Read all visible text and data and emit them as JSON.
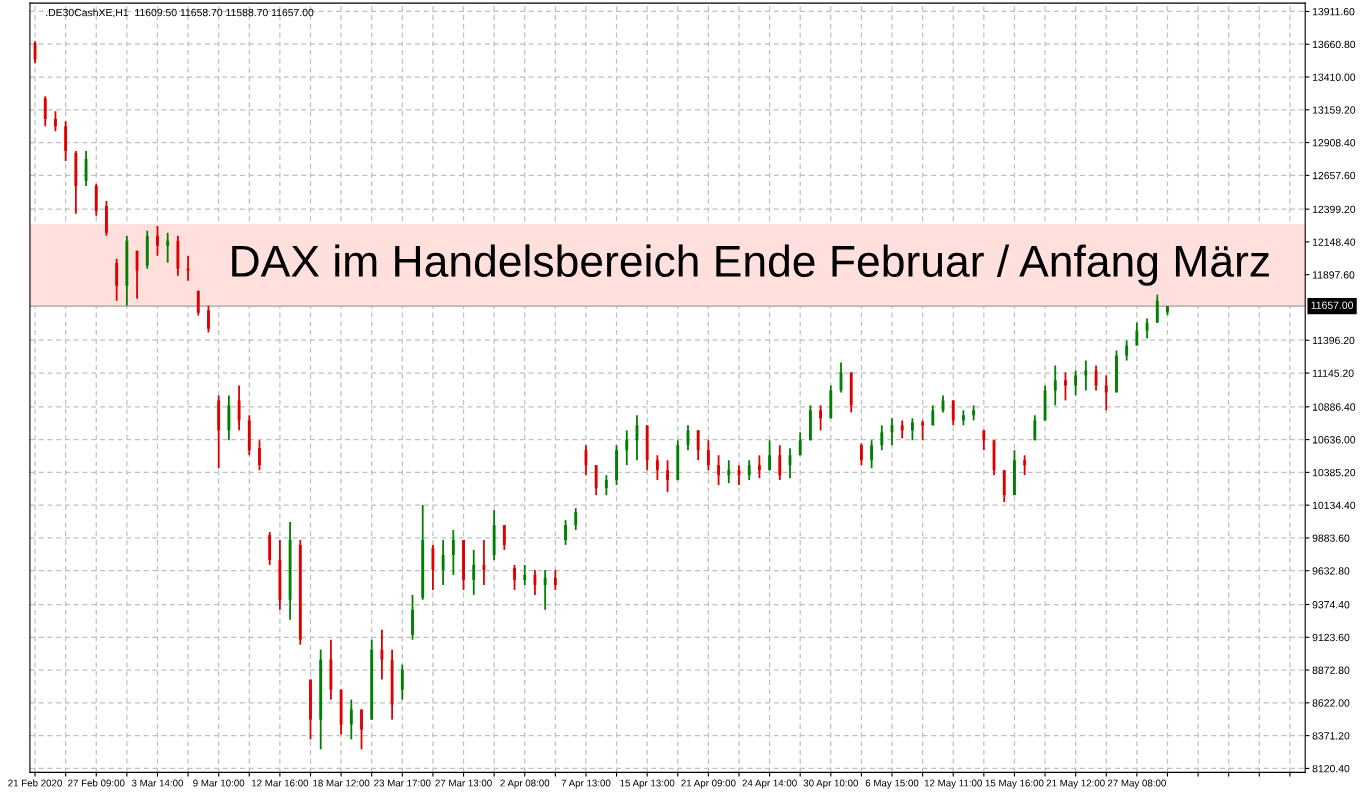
{
  "chart_data": {
    "type": "candlestick",
    "annotations": [
      ".DE30CashXE,H1  11609.50 11658.70 11588.70 11657.00"
    ],
    "categories": [
      "21 Feb 2020",
      null,
      null,
      null,
      null,
      null,
      "27 Feb 09:00",
      null,
      null,
      null,
      null,
      null,
      "3 Mar 14:00",
      null,
      null,
      null,
      null,
      null,
      "9 Mar 10:00",
      null,
      null,
      null,
      null,
      null,
      "12 Mar 16:00",
      null,
      null,
      null,
      null,
      null,
      "18 Mar 12:00",
      null,
      null,
      null,
      null,
      null,
      "23 Mar 17:00",
      null,
      null,
      null,
      null,
      null,
      "27 Mar 13:00",
      null,
      null,
      null,
      null,
      null,
      "2 Apr 08:00",
      null,
      null,
      null,
      null,
      null,
      "7 Apr 13:00",
      null,
      null,
      null,
      null,
      null,
      "15 Apr 13:00",
      null,
      null,
      null,
      null,
      null,
      "21 Apr 09:00",
      null,
      null,
      null,
      null,
      null,
      "24 Apr 14:00",
      null,
      null,
      null,
      null,
      null,
      "30 Apr 10:00",
      null,
      null,
      null,
      null,
      null,
      "6 May 15:00",
      null,
      null,
      null,
      null,
      null,
      "12 May 11:00",
      null,
      null,
      null,
      null,
      null,
      "15 May 16:00",
      null,
      null,
      null,
      null,
      null,
      "21 May 12:00",
      null,
      null,
      null,
      null,
      null,
      "27 May 08:00",
      null,
      null,
      null,
      null,
      null,
      null,
      null,
      null,
      null,
      null,
      null,
      null,
      null,
      null,
      null,
      null
    ],
    "ohlc": [
      [
        13668,
        13683,
        13515,
        13545
      ],
      [
        13248,
        13263,
        13034,
        13088
      ],
      [
        13088,
        13149,
        12996,
        13034
      ],
      [
        13034,
        13072,
        12767,
        12844
      ],
      [
        12828,
        12844,
        12363,
        12576
      ],
      [
        12615,
        12844,
        12576,
        12782
      ],
      [
        12576,
        12592,
        12348,
        12386
      ],
      [
        12424,
        12462,
        12195,
        12218
      ],
      [
        11989,
        12020,
        11699,
        11813
      ],
      [
        11813,
        12195,
        11661,
        12157
      ],
      [
        12081,
        12081,
        11714,
        11928
      ],
      [
        11966,
        12233,
        11943,
        12195
      ],
      [
        12195,
        12271,
        12042,
        12119
      ],
      [
        12119,
        12218,
        11989,
        12157
      ],
      [
        12157,
        12195,
        11890,
        11943
      ],
      [
        11943,
        12042,
        11852,
        11928
      ],
      [
        11775,
        11775,
        11585,
        11607
      ],
      [
        11623,
        11661,
        11455,
        11485
      ],
      [
        10936,
        10974,
        10417,
        10707
      ],
      [
        10707,
        10974,
        10631,
        10898
      ],
      [
        10936,
        11050,
        10707,
        10783
      ],
      [
        10783,
        10822,
        10516,
        10555
      ],
      [
        10570,
        10631,
        10402,
        10440
      ],
      [
        9906,
        9929,
        9677,
        9715
      ],
      [
        9715,
        9868,
        9334,
        9410
      ],
      [
        9410,
        10005,
        9257,
        9868
      ],
      [
        9830,
        9868,
        9067,
        9105
      ],
      [
        8800,
        8800,
        8342,
        8494
      ],
      [
        8494,
        9029,
        8266,
        8952
      ],
      [
        8952,
        9105,
        8647,
        8723
      ],
      [
        8723,
        8723,
        8380,
        8456
      ],
      [
        8456,
        8647,
        8342,
        8571
      ],
      [
        8571,
        8571,
        8266,
        8418
      ],
      [
        8494,
        9105,
        8494,
        9029
      ],
      [
        9029,
        9181,
        8800,
        8952
      ],
      [
        8952,
        9029,
        8494,
        8609
      ],
      [
        8723,
        8914,
        8647,
        8876
      ],
      [
        9143,
        9448,
        9105,
        9334
      ],
      [
        9425,
        10135,
        9410,
        9868
      ],
      [
        9807,
        9830,
        9486,
        9639
      ],
      [
        9639,
        9868,
        9524,
        9753
      ],
      [
        9753,
        9944,
        9601,
        9868
      ],
      [
        9868,
        9868,
        9486,
        9563
      ],
      [
        9563,
        9792,
        9448,
        9677
      ],
      [
        9677,
        9868,
        9524,
        9639
      ],
      [
        9753,
        10097,
        9715,
        9982
      ],
      [
        9982,
        9982,
        9792,
        9830
      ],
      [
        9654,
        9677,
        9486,
        9563
      ],
      [
        9563,
        9677,
        9524,
        9601
      ],
      [
        9601,
        9639,
        9448,
        9524
      ],
      [
        9524,
        9639,
        9334,
        9578
      ],
      [
        9578,
        9639,
        9486,
        9524
      ],
      [
        9868,
        10020,
        9830,
        9982
      ],
      [
        9982,
        10112,
        9944,
        10081
      ],
      [
        10555,
        10593,
        10364,
        10440
      ],
      [
        10440,
        10440,
        10211,
        10265
      ],
      [
        10265,
        10364,
        10211,
        10326
      ],
      [
        10326,
        10593,
        10288,
        10555
      ],
      [
        10555,
        10707,
        10440,
        10631
      ],
      [
        10631,
        10822,
        10478,
        10745
      ],
      [
        10745,
        10745,
        10402,
        10478
      ],
      [
        10478,
        10516,
        10326,
        10402
      ],
      [
        10402,
        10478,
        10234,
        10326
      ],
      [
        10326,
        10631,
        10326,
        10593
      ],
      [
        10593,
        10745,
        10555,
        10707
      ],
      [
        10707,
        10707,
        10478,
        10555
      ],
      [
        10555,
        10631,
        10402,
        10440
      ],
      [
        10440,
        10516,
        10288,
        10364
      ],
      [
        10364,
        10478,
        10303,
        10402
      ],
      [
        10402,
        10440,
        10288,
        10364
      ],
      [
        10364,
        10478,
        10326,
        10440
      ],
      [
        10440,
        10516,
        10341,
        10402
      ],
      [
        10402,
        10631,
        10402,
        10516
      ],
      [
        10516,
        10593,
        10326,
        10364
      ],
      [
        10440,
        10570,
        10341,
        10516
      ],
      [
        10516,
        10692,
        10516,
        10631
      ],
      [
        10631,
        10898,
        10631,
        10860
      ],
      [
        10860,
        10898,
        10707,
        10799
      ],
      [
        10799,
        11050,
        10799,
        11012
      ],
      [
        11012,
        11226,
        10997,
        11150
      ],
      [
        11150,
        11150,
        10844,
        10898
      ],
      [
        10593,
        10608,
        10440,
        10478
      ],
      [
        10478,
        10631,
        10417,
        10593
      ],
      [
        10593,
        10745,
        10555,
        10692
      ],
      [
        10692,
        10799,
        10593,
        10745
      ],
      [
        10745,
        10783,
        10646,
        10707
      ],
      [
        10707,
        10799,
        10631,
        10768
      ],
      [
        10768,
        10783,
        10631,
        10745
      ],
      [
        10745,
        10898,
        10745,
        10860
      ],
      [
        10860,
        10974,
        10844,
        10936
      ],
      [
        10936,
        10936,
        10745,
        10783
      ],
      [
        10783,
        10860,
        10745,
        10822
      ],
      [
        10822,
        10898,
        10783,
        10860
      ],
      [
        10707,
        10707,
        10555,
        10631
      ],
      [
        10631,
        10631,
        10364,
        10402
      ],
      [
        10402,
        10402,
        10158,
        10211
      ],
      [
        10211,
        10555,
        10211,
        10478
      ],
      [
        10478,
        10516,
        10364,
        10440
      ],
      [
        10631,
        10822,
        10631,
        10783
      ],
      [
        10783,
        11050,
        10783,
        11012
      ],
      [
        11012,
        11203,
        10898,
        11089
      ],
      [
        11089,
        11150,
        10936,
        11050
      ],
      [
        11050,
        11165,
        10974,
        11127
      ],
      [
        11127,
        11241,
        11012,
        11165
      ],
      [
        11165,
        11203,
        11012,
        11050
      ],
      [
        11050,
        11127,
        10860,
        10997
      ],
      [
        10997,
        11318,
        10997,
        11279
      ],
      [
        11279,
        11394,
        11241,
        11356
      ],
      [
        11356,
        11531,
        11356,
        11470
      ],
      [
        11470,
        11562,
        11409,
        11531
      ],
      [
        11531,
        11745,
        11531,
        11699
      ],
      [
        11609.5,
        11658.7,
        11588.7,
        11657.0
      ],
      null,
      null,
      null,
      null,
      null,
      null,
      null,
      null,
      null,
      null,
      null,
      null,
      null
    ],
    "colors": [
      "#e00000",
      "#e00000",
      "#e00000",
      "#e00000",
      "#e00000",
      "#008000",
      "#e00000",
      "#e00000",
      "#e00000",
      "#008000",
      "#e00000",
      "#008000",
      "#e00000",
      "#008000",
      "#e00000",
      "#e00000",
      "#e00000",
      "#e00000",
      "#e00000",
      "#008000",
      "#e00000",
      "#e00000",
      "#e00000",
      "#e00000",
      "#e00000",
      "#008000",
      "#e00000",
      "#e00000",
      "#008000",
      "#e00000",
      "#e00000",
      "#008000",
      "#e00000",
      "#008000",
      "#e00000",
      "#e00000",
      "#008000",
      "#008000",
      "#008000",
      "#e00000",
      "#008000",
      "#008000",
      "#e00000",
      "#008000",
      "#e00000",
      "#008000",
      "#e00000",
      "#e00000",
      "#008000",
      "#e00000",
      "#008000",
      "#e00000",
      "#008000",
      "#008000",
      "#e00000",
      "#e00000",
      "#008000",
      "#008000",
      "#008000",
      "#008000",
      "#e00000",
      "#e00000",
      "#e00000",
      "#008000",
      "#008000",
      "#e00000",
      "#e00000",
      "#e00000",
      "#008000",
      "#e00000",
      "#008000",
      "#e00000",
      "#008000",
      "#e00000",
      "#008000",
      "#008000",
      "#008000",
      "#e00000",
      "#008000",
      "#008000",
      "#e00000",
      "#e00000",
      "#008000",
      "#008000",
      "#008000",
      "#e00000",
      "#008000",
      "#e00000",
      "#008000",
      "#008000",
      "#e00000",
      "#008000",
      "#008000",
      "#e00000",
      "#e00000",
      "#e00000",
      "#008000",
      "#e00000",
      "#008000",
      "#008000",
      "#008000",
      "#e00000",
      "#008000",
      "#008000",
      "#e00000",
      "#e00000",
      "#008000",
      "#008000",
      "#008000",
      "#008000",
      "#008000",
      "#008000",
      null,
      null,
      null,
      null,
      null,
      null,
      null,
      null,
      null,
      null,
      null,
      null,
      null
    ],
    "ylim": [
      8090,
      13975
    ],
    "yticks": [
      {
        "value": 13911.6,
        "label": "13911.60"
      },
      {
        "value": 13660.8,
        "label": "13660.80"
      },
      {
        "value": 13410.0,
        "label": "13410.00"
      },
      {
        "value": 13159.2,
        "label": "13159.20"
      },
      {
        "value": 12908.4,
        "label": "12908.40"
      },
      {
        "value": 12657.6,
        "label": "12657.60"
      },
      {
        "value": 12399.2,
        "label": "12399.20"
      },
      {
        "value": 12148.4,
        "label": "12148.40"
      },
      {
        "value": 11897.6,
        "label": "11897.60"
      },
      {
        "value": 11396.2,
        "label": "11396.20"
      },
      {
        "value": 11145.2,
        "label": "11145.20"
      },
      {
        "value": 10886.4,
        "label": "10886.40"
      },
      {
        "value": 10636.0,
        "label": "10636.00"
      },
      {
        "value": 10385.2,
        "label": "10385.20"
      },
      {
        "value": 10134.4,
        "label": "10134.40"
      },
      {
        "value": 9883.6,
        "label": "9883.60"
      },
      {
        "value": 9632.8,
        "label": "9632.80"
      },
      {
        "value": 9374.4,
        "label": "9374.40"
      },
      {
        "value": 9123.6,
        "label": "9123.60"
      },
      {
        "value": 8872.8,
        "label": "8872.80"
      },
      {
        "value": 8622.0,
        "label": "8622.00"
      },
      {
        "value": 8371.2,
        "label": "8371.20"
      },
      {
        "value": 8120.4,
        "label": "8120.40"
      }
    ],
    "ref_lines": [
      {
        "axis": "y",
        "value": 11657.0,
        "label": "11657.00",
        "color": "#a0a0a0",
        "line_style": "solid"
      }
    ],
    "bands": [
      {
        "axis": "y",
        "from": 11657.0,
        "to": 12285,
        "label": "DAX im Handelsbereich Ende Februar / Anfang März",
        "color": "#ffe0dc"
      }
    ],
    "grid": true
  }
}
